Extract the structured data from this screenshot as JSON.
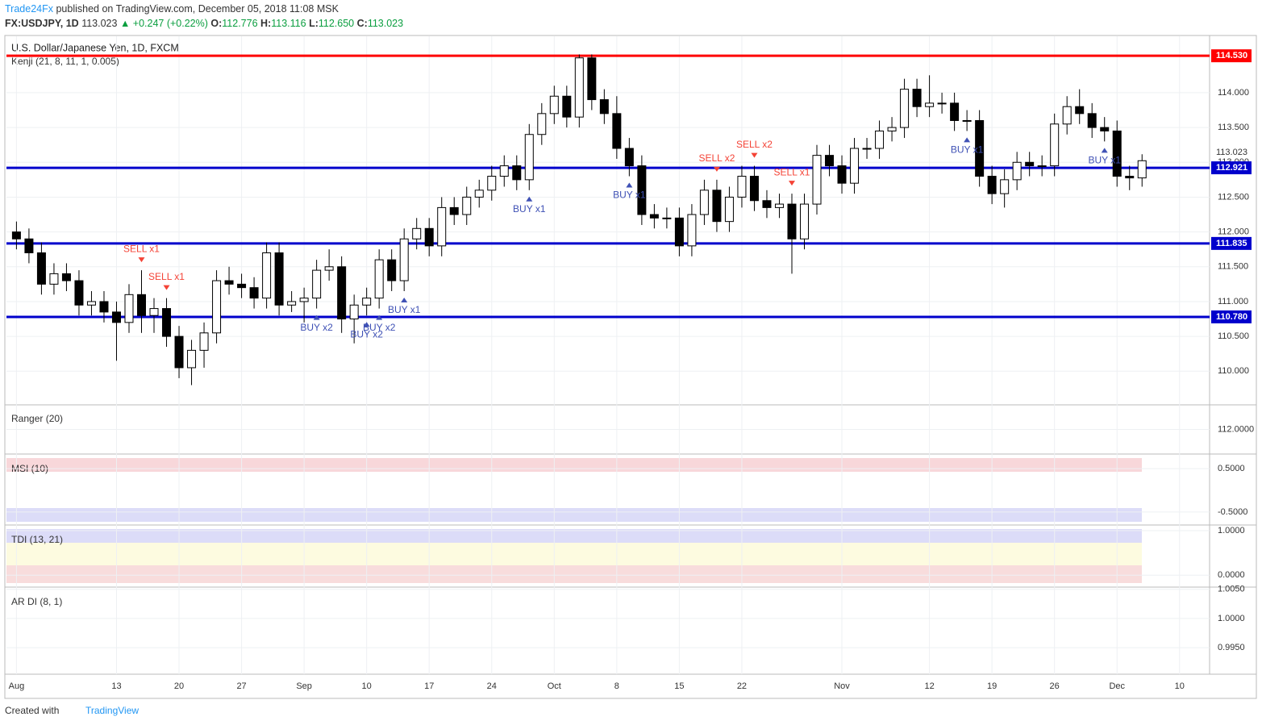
{
  "header": {
    "publisher": "Trade24Fx",
    "published": "published on TradingView.com, December 05, 2018 11:08 MSK",
    "symbol": "FX:USDJPY, 1D",
    "change": "▲ +0.247 (+0.22%)",
    "o_label": "O:",
    "o": "112.776",
    "h_label": "H:",
    "h": "113.116",
    "l_label": "L:",
    "l": "112.650",
    "c_label": "C:",
    "c": "113.023"
  },
  "footer": {
    "created": "Created with",
    "brand": "TradingView"
  },
  "chart_data": {
    "type": "candlestick",
    "title": "U.S. Dollar/Japanese Yen, 1D, FXCM",
    "indicator": "Kenji (21, 8, 11, 1, 0.005)",
    "up_color": "#ffffff",
    "down_color": "#000000",
    "grid": true,
    "open": [
      112.0,
      111.9,
      111.7,
      111.25,
      111.4,
      111.3,
      110.95,
      111.0,
      110.85,
      110.7,
      111.1,
      110.8,
      110.9,
      110.5,
      110.05,
      110.3,
      110.55,
      111.3,
      111.25,
      111.2,
      111.05,
      111.7,
      110.95,
      111.0,
      111.05,
      111.45,
      111.5,
      110.75,
      110.95,
      111.05,
      111.6,
      111.3,
      111.9,
      112.05,
      111.8,
      112.35,
      112.25,
      112.5,
      112.6,
      112.8,
      112.95,
      112.75,
      113.4,
      113.7,
      113.95,
      113.65,
      114.5,
      113.9,
      113.7,
      113.2,
      112.95,
      112.25,
      112.2,
      112.2,
      111.8,
      112.25,
      112.6,
      112.15,
      112.5,
      112.8,
      112.45,
      112.35,
      112.4,
      111.9,
      112.4,
      113.1,
      112.95,
      112.7,
      113.2,
      113.2,
      113.45,
      113.5,
      114.05,
      113.8,
      113.85,
      113.85,
      113.6,
      113.6,
      112.8,
      112.55,
      112.75,
      113.0,
      112.95,
      112.95,
      113.55,
      113.8,
      113.7,
      113.5,
      113.45,
      112.8,
      112.776
    ],
    "high": [
      112.15,
      112.05,
      111.85,
      111.55,
      111.55,
      111.45,
      111.15,
      111.15,
      111.0,
      111.25,
      111.45,
      111.05,
      111.05,
      110.65,
      110.45,
      110.7,
      111.45,
      111.5,
      111.4,
      111.35,
      111.85,
      111.85,
      111.15,
      111.2,
      111.6,
      111.75,
      111.65,
      111.1,
      111.2,
      111.75,
      111.75,
      112.05,
      112.2,
      112.2,
      112.5,
      112.5,
      112.65,
      112.75,
      112.95,
      113.1,
      113.1,
      113.55,
      113.85,
      114.1,
      114.1,
      114.55,
      114.55,
      114.05,
      113.95,
      113.35,
      113.1,
      112.4,
      112.35,
      112.35,
      112.4,
      112.75,
      112.75,
      112.65,
      112.95,
      112.95,
      112.6,
      112.55,
      112.55,
      112.55,
      113.25,
      113.25,
      113.1,
      113.35,
      113.35,
      113.6,
      113.65,
      114.2,
      114.2,
      114.25,
      114.0,
      114.0,
      113.75,
      113.75,
      112.95,
      112.9,
      113.15,
      113.15,
      113.1,
      113.7,
      113.95,
      114.05,
      113.85,
      113.65,
      113.6,
      112.95,
      113.116
    ],
    "low": [
      111.75,
      111.55,
      111.1,
      111.1,
      111.15,
      110.8,
      110.8,
      110.7,
      110.15,
      110.55,
      110.55,
      110.55,
      110.35,
      109.9,
      109.8,
      110.05,
      110.4,
      111.1,
      111.05,
      110.9,
      110.9,
      110.8,
      110.85,
      110.7,
      110.9,
      111.3,
      110.55,
      110.4,
      110.8,
      110.9,
      111.15,
      111.15,
      111.75,
      111.65,
      111.65,
      112.1,
      112.1,
      112.35,
      112.45,
      112.65,
      112.6,
      112.6,
      113.25,
      113.55,
      113.5,
      113.5,
      113.75,
      113.55,
      113.05,
      112.8,
      112.1,
      112.05,
      112.05,
      111.65,
      111.65,
      112.1,
      112.0,
      112.0,
      112.35,
      112.3,
      112.2,
      112.2,
      111.4,
      111.75,
      112.25,
      112.8,
      112.55,
      112.55,
      113.05,
      113.05,
      113.3,
      113.35,
      113.65,
      113.65,
      113.7,
      113.45,
      113.45,
      112.65,
      112.4,
      112.35,
      112.6,
      112.8,
      112.8,
      112.8,
      113.4,
      113.55,
      113.35,
      113.3,
      112.65,
      112.6,
      112.65
    ],
    "close": [
      111.9,
      111.7,
      111.25,
      111.4,
      111.3,
      110.95,
      111.0,
      110.85,
      110.7,
      111.1,
      110.8,
      110.9,
      110.5,
      110.05,
      110.3,
      110.55,
      111.3,
      111.25,
      111.2,
      111.05,
      111.7,
      110.95,
      111.0,
      111.05,
      111.45,
      111.5,
      110.75,
      110.95,
      111.05,
      111.6,
      111.3,
      111.9,
      112.05,
      111.8,
      112.35,
      112.25,
      112.5,
      112.6,
      112.8,
      112.95,
      112.75,
      113.4,
      113.7,
      113.95,
      113.65,
      114.5,
      113.9,
      113.7,
      113.2,
      112.95,
      112.25,
      112.2,
      112.2,
      111.8,
      112.25,
      112.6,
      112.15,
      112.5,
      112.8,
      112.45,
      112.35,
      112.4,
      111.9,
      112.4,
      113.1,
      112.95,
      112.7,
      113.2,
      113.2,
      113.45,
      113.5,
      114.05,
      113.8,
      113.85,
      113.85,
      113.6,
      113.6,
      112.8,
      112.55,
      112.75,
      113.0,
      112.95,
      112.95,
      113.55,
      113.8,
      113.7,
      113.5,
      113.45,
      112.8,
      112.776,
      113.023
    ],
    "xlim": [
      -0.8,
      95.4
    ],
    "xticks": [
      {
        "value": 0,
        "label": "Aug"
      },
      {
        "value": 8,
        "label": "13"
      },
      {
        "value": 13,
        "label": "20"
      },
      {
        "value": 18,
        "label": "27"
      },
      {
        "value": 23,
        "label": "Sep"
      },
      {
        "value": 28,
        "label": "10"
      },
      {
        "value": 33,
        "label": "17"
      },
      {
        "value": 38,
        "label": "24"
      },
      {
        "value": 43,
        "label": "Oct"
      },
      {
        "value": 48,
        "label": "8"
      },
      {
        "value": 53,
        "label": "15"
      },
      {
        "value": 58,
        "label": "22"
      },
      {
        "value": 66,
        "label": "Nov"
      },
      {
        "value": 73,
        "label": "12"
      },
      {
        "value": 78,
        "label": "19"
      },
      {
        "value": 83,
        "label": "26"
      },
      {
        "value": 88,
        "label": "Dec"
      },
      {
        "value": 93,
        "label": "10"
      }
    ],
    "ylim": [
      109.54,
      114.81
    ],
    "yticks": [
      {
        "value": 110,
        "label": "110.000"
      },
      {
        "value": 110.5,
        "label": "110.500"
      },
      {
        "value": 111,
        "label": "111.000"
      },
      {
        "value": 111.5,
        "label": "111.500"
      },
      {
        "value": 112,
        "label": "112.000"
      },
      {
        "value": 112.5,
        "label": "112.500"
      },
      {
        "value": 113,
        "label": "113.000"
      },
      {
        "value": 113.5,
        "label": "113.500"
      },
      {
        "value": 114,
        "label": "114.000"
      }
    ],
    "levels": [
      {
        "value": 114.53,
        "label": "114.530",
        "color": "#ff0000"
      },
      {
        "value": 112.921,
        "label": "112.921",
        "color": "#0000cc"
      },
      {
        "value": 111.835,
        "label": "111.835",
        "color": "#0000cc"
      },
      {
        "value": 110.78,
        "label": "110.780",
        "color": "#0000cc"
      }
    ],
    "signals": [
      {
        "x": 10,
        "label": "SELL x1",
        "side": "above"
      },
      {
        "x": 12,
        "label": "SELL x1",
        "side": "above"
      },
      {
        "x": 24,
        "label": "BUY x2",
        "side": "below"
      },
      {
        "x": 28,
        "label": "BUY x2",
        "side": "below"
      },
      {
        "x": 29,
        "label": "BUY x2",
        "side": "below"
      },
      {
        "x": 31,
        "label": "BUY x1",
        "side": "below"
      },
      {
        "x": 41,
        "label": "BUY x1",
        "side": "below"
      },
      {
        "x": 49,
        "label": "BUY x1",
        "side": "below"
      },
      {
        "x": 56,
        "label": "SELL x2",
        "side": "above"
      },
      {
        "x": 59,
        "label": "SELL x2",
        "side": "above"
      },
      {
        "x": 62,
        "label": "SELL x1",
        "side": "above"
      },
      {
        "x": 76,
        "label": "BUY x1",
        "side": "below"
      },
      {
        "x": 87,
        "label": "BUY x1",
        "side": "below"
      }
    ],
    "panes": [
      {
        "title": "Ranger (20)",
        "ylim": [
          111.5,
          112.5
        ],
        "ticks": [
          {
            "value": 112,
            "label": "112.0000"
          }
        ]
      },
      {
        "title": "MSI (10)",
        "ylim": [
          -0.78,
          0.8
        ],
        "ticks": [
          {
            "value": 0.5,
            "label": "0.5000"
          },
          {
            "value": -0.5,
            "label": "-0.5000"
          }
        ]
      },
      {
        "title": "TDI (13, 21)",
        "ylim": [
          -0.25,
          1.09
        ],
        "ticks": [
          {
            "value": 1,
            "label": "1.0000"
          },
          {
            "value": 0,
            "label": "0.0000"
          }
        ]
      },
      {
        "title": "AR DI (8, 1)",
        "ylim": [
          0.9906,
          1.0051
        ],
        "ticks": [
          {
            "value": 1.005,
            "label": "1.0050"
          },
          {
            "value": 1,
            "label": "1.0000"
          },
          {
            "value": 0.995,
            "label": "0.9950"
          }
        ]
      }
    ]
  }
}
